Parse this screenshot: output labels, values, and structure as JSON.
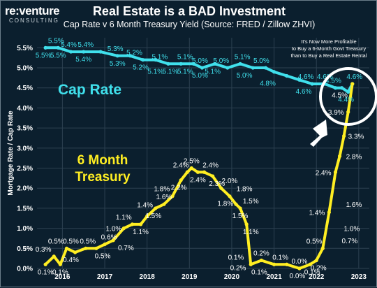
{
  "brand": {
    "name": "re:venture",
    "sub": "CONSULTING"
  },
  "colors": {
    "background": "#0b1f2e",
    "cap_rate": "#40e0ec",
    "treasury": "#ffee22",
    "grid": "#2c4050"
  },
  "chart_data": {
    "type": "line",
    "title": "Real Estate is a BAD Investment",
    "subtitle": "Cap Rate v 6 Month Treasury Yield (Source: FRED / Zillow ZHVI)",
    "ylabel": "Mortgage Rate / Cap Rate",
    "xlabel": "",
    "ylim": [
      0,
      5.75
    ],
    "xlim": [
      2015.4,
      2023.25
    ],
    "x_ticks": [
      "2016",
      "2017",
      "2018",
      "2019",
      "2020",
      "2021",
      "2022",
      "2023"
    ],
    "y_ticks": [
      "0.0%",
      "0.5%",
      "1.0%",
      "1.5%",
      "2.0%",
      "2.5%",
      "3.0%",
      "3.5%",
      "4.0%",
      "4.5%",
      "5.0%",
      "5.5%"
    ],
    "grid": true,
    "annotation": [
      "It's Now More Profitable",
      "to Buy a 6-Month Govt Treasury",
      "than to Buy a Real Estate Rental"
    ],
    "series": [
      {
        "name": "Cap Rate",
        "x": [
          2015.6,
          2015.9,
          2016.2,
          2016.5,
          2016.9,
          2017.3,
          2017.6,
          2017.9,
          2018.2,
          2018.5,
          2018.8,
          2019.1,
          2019.3,
          2019.6,
          2019.9,
          2020.2,
          2020.5,
          2020.8,
          2021.0,
          2021.3,
          2021.6,
          2021.9,
          2022.2,
          2022.45,
          2022.6,
          2022.75,
          2022.85
        ],
        "values": [
          5.5,
          5.5,
          5.4,
          5.4,
          5.4,
          5.3,
          5.3,
          5.2,
          5.2,
          5.1,
          5.1,
          5.1,
          5.0,
          5.1,
          5.0,
          5.1,
          5.0,
          5.0,
          4.9,
          4.8,
          4.7,
          4.6,
          4.6,
          4.5,
          4.5,
          4.4,
          4.6
        ]
      },
      {
        "name": "6 Month Treasury",
        "x": [
          2015.6,
          2015.8,
          2015.95,
          2016.1,
          2016.3,
          2016.55,
          2016.8,
          2017.0,
          2017.2,
          2017.45,
          2017.65,
          2017.85,
          2018.0,
          2018.2,
          2018.4,
          2018.6,
          2018.8,
          2018.95,
          2019.05,
          2019.2,
          2019.35,
          2019.55,
          2019.75,
          2019.95,
          2020.1,
          2020.2,
          2020.35,
          2020.45,
          2020.7,
          2021.0,
          2021.3,
          2021.6,
          2021.85,
          2022.0,
          2022.15,
          2022.3,
          2022.45,
          2022.55,
          2022.65,
          2022.75,
          2022.85
        ],
        "values": [
          0.1,
          0.3,
          0.1,
          0.5,
          0.4,
          0.5,
          0.5,
          0.6,
          0.7,
          1.0,
          1.1,
          1.1,
          1.3,
          1.5,
          1.6,
          1.8,
          2.2,
          2.4,
          2.5,
          2.4,
          2.4,
          2.3,
          2.0,
          1.8,
          1.6,
          1.5,
          1.1,
          0.1,
          0.2,
          0.1,
          0.1,
          0.0,
          0.1,
          0.2,
          0.5,
          1.4,
          2.4,
          2.8,
          3.3,
          3.9,
          4.6
        ]
      }
    ],
    "data_labels": {
      "cap": [
        {
          "x": 2015.85,
          "y": 5.5,
          "t": "5.5%",
          "pos": "above"
        },
        {
          "x": 2016.15,
          "y": 5.4,
          "t": "5.4%",
          "pos": "above"
        },
        {
          "x": 2016.55,
          "y": 5.4,
          "t": "5.4%",
          "pos": "above"
        },
        {
          "x": 2015.55,
          "y": 5.5,
          "t": "5.5%",
          "pos": "below"
        },
        {
          "x": 2015.9,
          "y": 5.5,
          "t": "5.5%",
          "pos": "below"
        },
        {
          "x": 2016.5,
          "y": 5.4,
          "t": "5.4%",
          "pos": "below"
        },
        {
          "x": 2017.25,
          "y": 5.3,
          "t": "5.3%",
          "pos": "above"
        },
        {
          "x": 2017.7,
          "y": 5.2,
          "t": "5.2%",
          "pos": "above"
        },
        {
          "x": 2017.3,
          "y": 5.3,
          "t": "5.3%",
          "pos": "below"
        },
        {
          "x": 2017.85,
          "y": 5.2,
          "t": "5.2%",
          "pos": "below"
        },
        {
          "x": 2018.3,
          "y": 5.1,
          "t": "5.1%",
          "pos": "above"
        },
        {
          "x": 2018.2,
          "y": 5.1,
          "t": "5.1%",
          "pos": "below"
        },
        {
          "x": 2018.55,
          "y": 5.1,
          "t": "5.1%",
          "pos": "below"
        },
        {
          "x": 2018.9,
          "y": 5.1,
          "t": "5.1%",
          "pos": "above"
        },
        {
          "x": 2018.9,
          "y": 5.1,
          "t": "5.1%",
          "pos": "below"
        },
        {
          "x": 2019.25,
          "y": 5.0,
          "t": "5.0%",
          "pos": "above"
        },
        {
          "x": 2019.25,
          "y": 5.0,
          "t": "5.0%",
          "pos": "below"
        },
        {
          "x": 2019.55,
          "y": 5.1,
          "t": "5.1%",
          "pos": "below"
        },
        {
          "x": 2019.75,
          "y": 5.0,
          "t": "5.0%",
          "pos": "above"
        },
        {
          "x": 2020.25,
          "y": 5.1,
          "t": "5.1%",
          "pos": "above"
        },
        {
          "x": 2020.3,
          "y": 5.0,
          "t": "5.0%",
          "pos": "below"
        },
        {
          "x": 2020.7,
          "y": 5.0,
          "t": "5.0%",
          "pos": "above"
        },
        {
          "x": 2020.85,
          "y": 4.8,
          "t": "4.8%",
          "pos": "below"
        },
        {
          "x": 2021.75,
          "y": 4.6,
          "t": "4.6%",
          "pos": "above"
        },
        {
          "x": 2021.7,
          "y": 4.6,
          "t": "4.6%",
          "pos": "below"
        },
        {
          "x": 2022.2,
          "y": 4.6,
          "t": "4.6%",
          "pos": "above"
        },
        {
          "x": 2022.4,
          "y": 4.5,
          "t": "4.5%",
          "pos": "above"
        },
        {
          "x": 2022.7,
          "y": 4.4,
          "t": "4.4%",
          "pos": "below"
        },
        {
          "x": 2022.9,
          "y": 4.6,
          "t": "4.6%",
          "pos": "above"
        }
      ],
      "treasury": [
        {
          "x": 2015.55,
          "y": 0.3,
          "t": "0.3%",
          "pos": "above"
        },
        {
          "x": 2015.6,
          "y": 0.1,
          "t": "0.1%",
          "pos": "below"
        },
        {
          "x": 2015.95,
          "y": 0.1,
          "t": "0.1%",
          "pos": "below"
        },
        {
          "x": 2015.85,
          "y": 0.5,
          "t": "0.5%",
          "pos": "above"
        },
        {
          "x": 2016.2,
          "y": 0.5,
          "t": "0.5%",
          "pos": "above"
        },
        {
          "x": 2016.2,
          "y": 0.4,
          "t": "0.4%",
          "pos": "below"
        },
        {
          "x": 2016.6,
          "y": 0.5,
          "t": "0.5%",
          "pos": "above"
        },
        {
          "x": 2016.95,
          "y": 0.5,
          "t": "0.5%",
          "pos": "below"
        },
        {
          "x": 2017.1,
          "y": 0.6,
          "t": "0.6%",
          "pos": "above"
        },
        {
          "x": 2017.5,
          "y": 0.7,
          "t": "0.7%",
          "pos": "below"
        },
        {
          "x": 2017.45,
          "y": 1.1,
          "t": "1.1%",
          "pos": "above"
        },
        {
          "x": 2017.5,
          "y": 1.0,
          "t": "1.0%",
          "pos": "left"
        },
        {
          "x": 2017.85,
          "y": 1.1,
          "t": "1.1%",
          "pos": "below"
        },
        {
          "x": 2017.95,
          "y": 1.4,
          "t": "1.4%",
          "pos": "above"
        },
        {
          "x": 2018.15,
          "y": 1.5,
          "t": "1.5%",
          "pos": "below"
        },
        {
          "x": 2018.4,
          "y": 1.6,
          "t": "1.6%",
          "pos": "above"
        },
        {
          "x": 2018.35,
          "y": 1.8,
          "t": "1.8%",
          "pos": "above"
        },
        {
          "x": 2018.75,
          "y": 2.2,
          "t": "2.2%",
          "pos": "below"
        },
        {
          "x": 2018.8,
          "y": 2.4,
          "t": "2.4%",
          "pos": "above"
        },
        {
          "x": 2019.05,
          "y": 2.5,
          "t": "2.5%",
          "pos": "above"
        },
        {
          "x": 2019.2,
          "y": 2.4,
          "t": "2.4%",
          "pos": "below"
        },
        {
          "x": 2019.5,
          "y": 2.4,
          "t": "2.4%",
          "pos": "above"
        },
        {
          "x": 2019.65,
          "y": 2.3,
          "t": "2.3%",
          "pos": "below"
        },
        {
          "x": 2019.95,
          "y": 2.0,
          "t": "2.0%",
          "pos": "above"
        },
        {
          "x": 2019.85,
          "y": 1.8,
          "t": "1.8%",
          "pos": "below"
        },
        {
          "x": 2020.3,
          "y": 1.8,
          "t": "1.8%",
          "pos": "above"
        },
        {
          "x": 2020.45,
          "y": 1.5,
          "t": "1.5%",
          "pos": "above"
        },
        {
          "x": 2020.2,
          "y": 1.5,
          "t": "1.5%",
          "pos": "below"
        },
        {
          "x": 2020.45,
          "y": 1.1,
          "t": "1.1%",
          "pos": "below"
        },
        {
          "x": 2020.1,
          "y": 0.1,
          "t": "0.1%",
          "pos": "above"
        },
        {
          "x": 2020.15,
          "y": 0.2,
          "t": "0.2%",
          "pos": "below"
        },
        {
          "x": 2020.7,
          "y": 0.2,
          "t": "0.2%",
          "pos": "above"
        },
        {
          "x": 2020.65,
          "y": 0.1,
          "t": "0.1%",
          "pos": "below"
        },
        {
          "x": 2021.15,
          "y": 0.1,
          "t": "0.1%",
          "pos": "above"
        },
        {
          "x": 2021.6,
          "y": 0.0,
          "t": "0.0%",
          "pos": "above"
        },
        {
          "x": 2021.55,
          "y": 0.0,
          "t": "0.0%",
          "pos": "below"
        },
        {
          "x": 2021.9,
          "y": 0.1,
          "t": "0.1%",
          "pos": "below"
        },
        {
          "x": 2021.95,
          "y": 0.5,
          "t": "0.5%",
          "pos": "above"
        },
        {
          "x": 2022.05,
          "y": 0.2,
          "t": "0.2%",
          "pos": "below"
        },
        {
          "x": 2022.3,
          "y": 1.4,
          "t": "1.4%",
          "pos": "left"
        },
        {
          "x": 2022.45,
          "y": 2.4,
          "t": "2.4%",
          "pos": "left"
        },
        {
          "x": 2022.5,
          "y": 0.7,
          "t": "0.7%",
          "pos": "right"
        },
        {
          "x": 2022.55,
          "y": 1.0,
          "t": "1.0%",
          "pos": "right"
        },
        {
          "x": 2022.6,
          "y": 1.6,
          "t": "1.6%",
          "pos": "right"
        },
        {
          "x": 2022.6,
          "y": 2.8,
          "t": "2.8%",
          "pos": "right"
        },
        {
          "x": 2022.65,
          "y": 3.3,
          "t": "3.3%",
          "pos": "right"
        },
        {
          "x": 2022.75,
          "y": 3.9,
          "t": "3.9%",
          "pos": "left"
        },
        {
          "x": 2022.55,
          "y": 4.5,
          "t": "4.5%",
          "pos": "below"
        }
      ]
    }
  }
}
